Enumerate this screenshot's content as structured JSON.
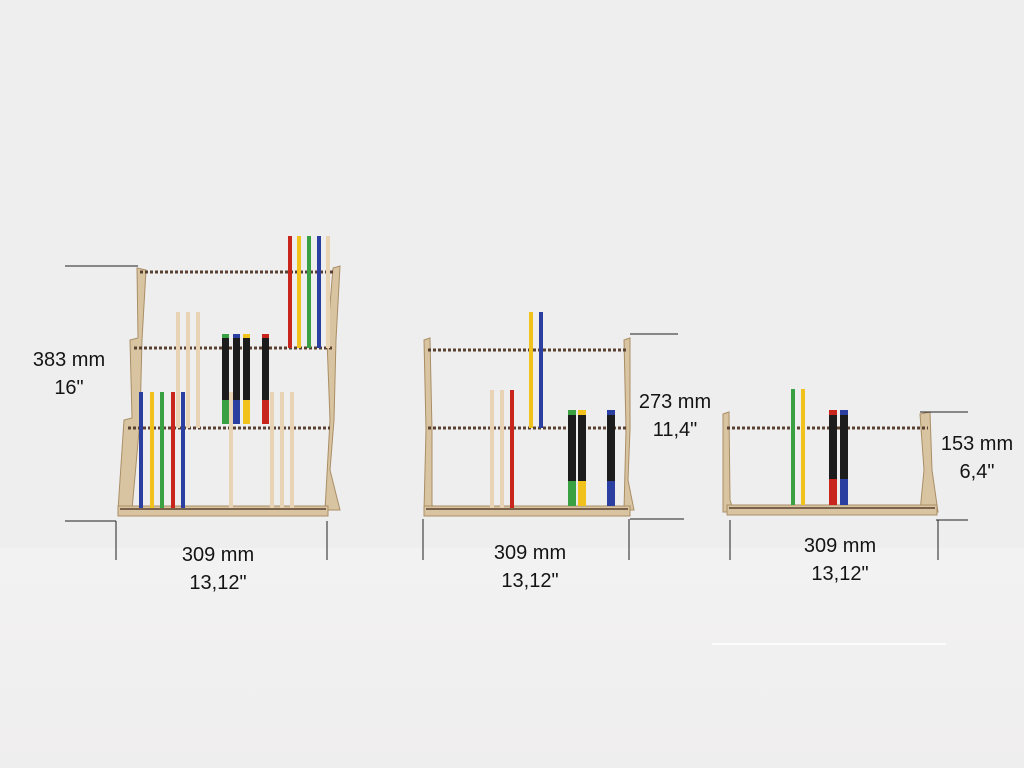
{
  "colors": {
    "background": "#efeeee",
    "wood": "#d8c4a0",
    "wood_edge": "#a98e66",
    "rail": "#5a4030",
    "dimension_line": "#202020",
    "stick_blue": "#2a3fa0",
    "stick_yellow": "#f2c21c",
    "stick_green": "#3aa142",
    "stick_red": "#c8261d",
    "stick_natural": "#e8d4b4",
    "marker_body": "#1c1c1c"
  },
  "racks": [
    {
      "name": "large-rack",
      "tiers": 4,
      "height": {
        "mm": "383 mm",
        "inch": "16\""
      },
      "width": {
        "mm": "309 mm",
        "inch": "13,12\""
      }
    },
    {
      "name": "medium-rack",
      "tiers": 3,
      "height": {
        "mm": "273 mm",
        "inch": "11,4\""
      },
      "width": {
        "mm": "309 mm",
        "inch": "13,12\""
      }
    },
    {
      "name": "small-rack",
      "tiers": 2,
      "height": {
        "mm": "153 mm",
        "inch": "6,4\""
      },
      "width": {
        "mm": "309 mm",
        "inch": "13,12\""
      }
    }
  ]
}
